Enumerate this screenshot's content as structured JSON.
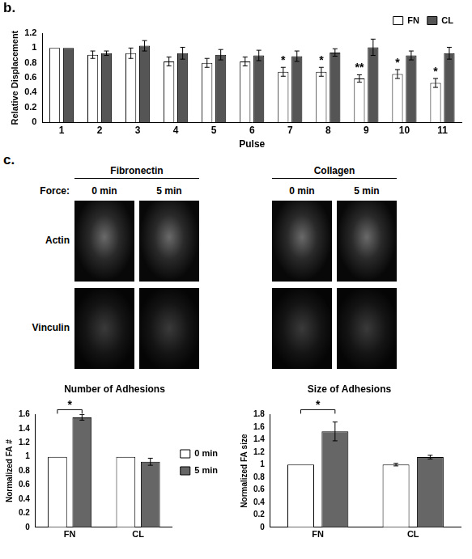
{
  "chart_data": [
    {
      "type": "bar",
      "title": null,
      "categories": [
        1,
        2,
        3,
        4,
        5,
        6,
        7,
        8,
        9,
        10,
        11
      ],
      "xlabel": "Pulse",
      "ylabel": "Relative Displacement",
      "ylim": [
        0,
        1.2
      ],
      "yticks": [
        0,
        0.2,
        0.4,
        0.6,
        0.8,
        1,
        1.2
      ],
      "grid": false,
      "legend": "top-right",
      "series": [
        {
          "name": "FN",
          "color": "#ffffff",
          "values": [
            1,
            0.91,
            0.93,
            0.82,
            0.8,
            0.82,
            0.68,
            0.68,
            0.59,
            0.65,
            0.53
          ],
          "errors": [
            0,
            0.05,
            0.07,
            0.06,
            0.06,
            0.06,
            0.06,
            0.06,
            0.05,
            0.06,
            0.06
          ]
        },
        {
          "name": "CL",
          "color": "#555555",
          "values": [
            1,
            0.93,
            1.03,
            0.93,
            0.91,
            0.9,
            0.89,
            0.94,
            1.01,
            0.9,
            0.93
          ],
          "errors": [
            0,
            0.03,
            0.07,
            0.08,
            0.07,
            0.07,
            0.07,
            0.05,
            0.11,
            0.06,
            0.08
          ]
        }
      ],
      "annotations": [
        {
          "category": 7,
          "series": "FN",
          "text": "*"
        },
        {
          "category": 8,
          "series": "FN",
          "text": "*"
        },
        {
          "category": 9,
          "series": "FN",
          "text": "**"
        },
        {
          "category": 10,
          "series": "FN",
          "text": "*"
        },
        {
          "category": 11,
          "series": "FN",
          "text": "*"
        }
      ]
    },
    {
      "type": "bar",
      "title": "Number of Adhesions",
      "categories": [
        "FN",
        "CL"
      ],
      "ylabel": "Normalized FA #",
      "ylim": [
        0,
        1.6
      ],
      "yticks": [
        0,
        0.2,
        0.4,
        0.6,
        0.8,
        1,
        1.2,
        1.4,
        1.6
      ],
      "grid": false,
      "legend": "right",
      "series": [
        {
          "name": "0 min",
          "color": "#ffffff",
          "values": [
            1,
            1
          ],
          "errors": [
            0,
            0
          ]
        },
        {
          "name": "5 min",
          "color": "#666666",
          "values": [
            1.56,
            0.93
          ],
          "errors": [
            0.04,
            0.05
          ]
        }
      ],
      "annotations": [
        {
          "category": "FN",
          "from": "0 min",
          "to": "5 min",
          "text": "*"
        }
      ]
    },
    {
      "type": "bar",
      "title": "Size of Adhesions",
      "categories": [
        "FN",
        "CL"
      ],
      "ylabel": "Normalized FA size",
      "ylim": [
        0,
        1.8
      ],
      "yticks": [
        0,
        0.2,
        0.4,
        0.6,
        0.8,
        1,
        1.2,
        1.4,
        1.6,
        1.8
      ],
      "grid": false,
      "series": [
        {
          "name": "0 min",
          "color": "#ffffff",
          "values": [
            1,
            1
          ],
          "errors": [
            0,
            0.02
          ]
        },
        {
          "name": "5 min",
          "color": "#666666",
          "values": [
            1.53,
            1.12
          ],
          "errors": [
            0.15,
            0.03
          ]
        }
      ],
      "annotations": [
        {
          "category": "FN",
          "from": "0 min",
          "to": "5 min",
          "text": "*"
        }
      ]
    }
  ],
  "figure": {
    "panels": [
      "b.",
      "c."
    ],
    "image_panel": {
      "force_label": "Force:",
      "groups": [
        {
          "title": "Fibronectin",
          "columns": [
            "0 min",
            "5 min"
          ]
        },
        {
          "title": "Collagen",
          "columns": [
            "0 min",
            "5 min"
          ]
        }
      ],
      "rows": [
        "Actin",
        "Vinculin"
      ]
    }
  }
}
